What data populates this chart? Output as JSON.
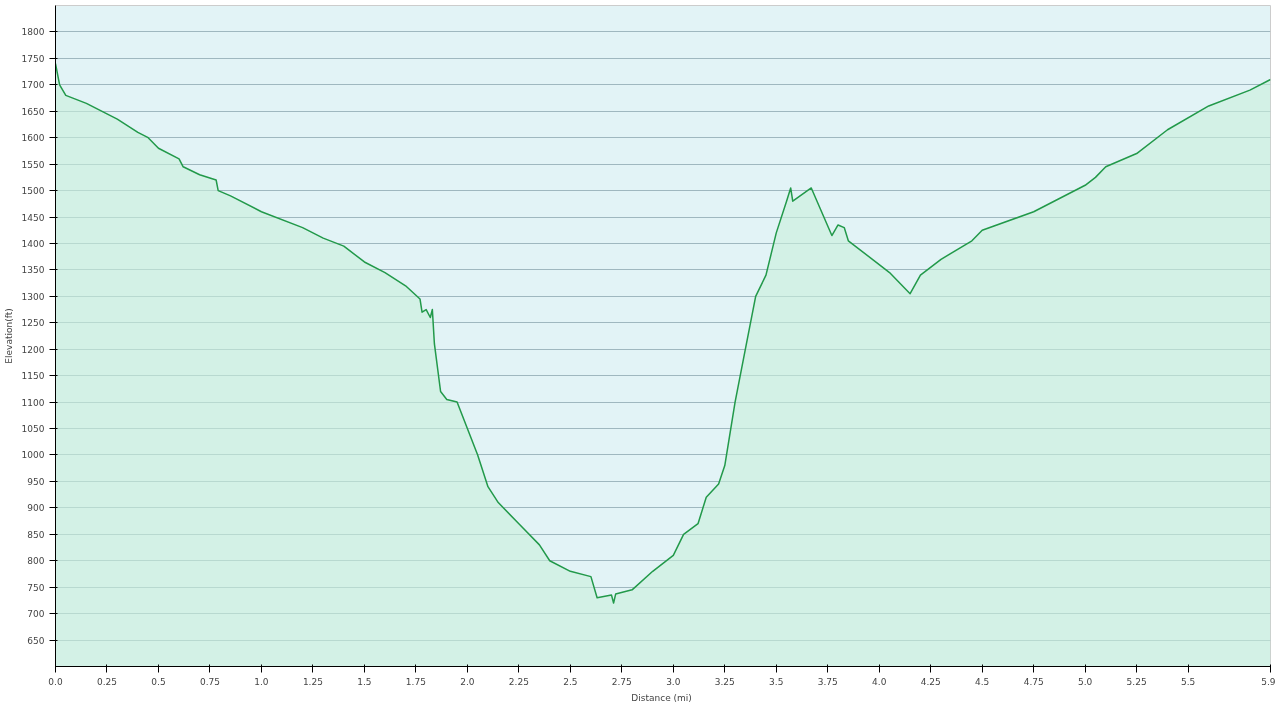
{
  "chart_data": {
    "type": "area",
    "xlabel": "Distance  (mi)",
    "ylabel": "Elevation(ft)",
    "x": [
      0,
      0.02,
      0.05,
      0.15,
      0.25,
      0.3,
      0.4,
      0.45,
      0.5,
      0.6,
      0.62,
      0.7,
      0.78,
      0.79,
      0.85,
      1.0,
      1.2,
      1.3,
      1.4,
      1.5,
      1.6,
      1.7,
      1.77,
      1.78,
      1.8,
      1.82,
      1.83,
      1.84,
      1.87,
      1.9,
      1.95,
      2.0,
      2.05,
      2.1,
      2.15,
      2.25,
      2.35,
      2.4,
      2.5,
      2.6,
      2.63,
      2.7,
      2.71,
      2.72,
      2.8,
      2.9,
      3.0,
      3.05,
      3.12,
      3.16,
      3.22,
      3.25,
      3.3,
      3.35,
      3.4,
      3.45,
      3.5,
      3.55,
      3.57,
      3.58,
      3.67,
      3.72,
      3.77,
      3.8,
      3.83,
      3.85,
      4.0,
      4.05,
      4.15,
      4.2,
      4.3,
      4.45,
      4.5,
      4.75,
      5.0,
      5.05,
      5.1,
      5.25,
      5.4,
      5.6,
      5.8,
      5.9
    ],
    "series": [
      {
        "color": "#22994a",
        "values": [
          1740,
          1700,
          1680,
          1665,
          1645,
          1635,
          1610,
          1600,
          1580,
          1560,
          1545,
          1530,
          1520,
          1500,
          1490,
          1460,
          1430,
          1410,
          1395,
          1365,
          1345,
          1320,
          1295,
          1270,
          1275,
          1260,
          1275,
          1210,
          1120,
          1105,
          1100,
          1050,
          1000,
          940,
          910,
          870,
          830,
          800,
          780,
          770,
          730,
          735,
          720,
          737,
          745,
          780,
          810,
          850,
          870,
          920,
          945,
          980,
          1100,
          1200,
          1300,
          1340,
          1420,
          1480,
          1505,
          1480,
          1505,
          1460,
          1415,
          1435,
          1430,
          1405,
          1360,
          1345,
          1305,
          1340,
          1370,
          1405,
          1425,
          1460,
          1510,
          1525,
          1545,
          1570,
          1615,
          1660,
          1690,
          1710
        ]
      }
    ],
    "xlim": [
      0,
      5.9
    ],
    "ylim": [
      600,
      1850
    ],
    "xticks": [
      {
        "value": 0,
        "label": "0.0"
      },
      0.25,
      0.5,
      0.75,
      {
        "value": 1,
        "label": "1.0"
      },
      1.25,
      1.5,
      1.75,
      {
        "value": 2,
        "label": "2.0"
      },
      2.25,
      2.5,
      2.75,
      {
        "value": 3,
        "label": "3.0"
      },
      3.25,
      3.5,
      3.75,
      {
        "value": 4,
        "label": "4.0"
      },
      4.25,
      4.5,
      4.75,
      {
        "value": 5,
        "label": "5.0"
      },
      5.25,
      5.5,
      5.9
    ],
    "yticks": [
      650,
      700,
      750,
      800,
      850,
      900,
      950,
      1000,
      1050,
      1100,
      1150,
      1200,
      1250,
      1300,
      1350,
      1400,
      1450,
      1500,
      1550,
      1600,
      1650,
      1700,
      1750,
      1800
    ],
    "grid": "y"
  }
}
